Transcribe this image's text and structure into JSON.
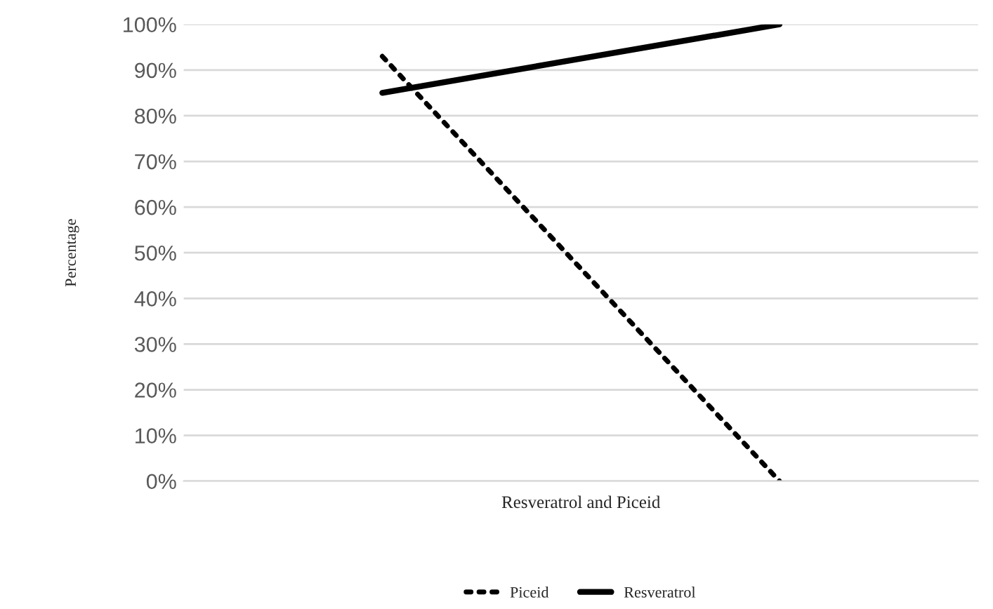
{
  "chart_data": {
    "type": "line",
    "xlabel": "Resveratrol and Piceid",
    "ylabel": "Percentage",
    "categories": [
      null,
      null
    ],
    "series": [
      {
        "name": "Piceid",
        "color": "#000000",
        "values": [
          93,
          0
        ],
        "line_style": "dotted"
      },
      {
        "name": "Resveratrol",
        "color": "#000000",
        "values": [
          85,
          100
        ],
        "line_style": "solid"
      }
    ],
    "ylim": [
      0,
      100
    ],
    "yticks": [
      {
        "value": 0,
        "label": "0%"
      },
      {
        "value": 10,
        "label": "10%"
      },
      {
        "value": 20,
        "label": "20%"
      },
      {
        "value": 30,
        "label": "30%"
      },
      {
        "value": 40,
        "label": "40%"
      },
      {
        "value": 50,
        "label": "50%"
      },
      {
        "value": 60,
        "label": "60%"
      },
      {
        "value": 70,
        "label": "70%"
      },
      {
        "value": 80,
        "label": "80%"
      },
      {
        "value": 90,
        "label": "90%"
      },
      {
        "value": 100,
        "label": "100%"
      }
    ],
    "grid": "y",
    "legend": "bottom",
    "marker": "none"
  }
}
